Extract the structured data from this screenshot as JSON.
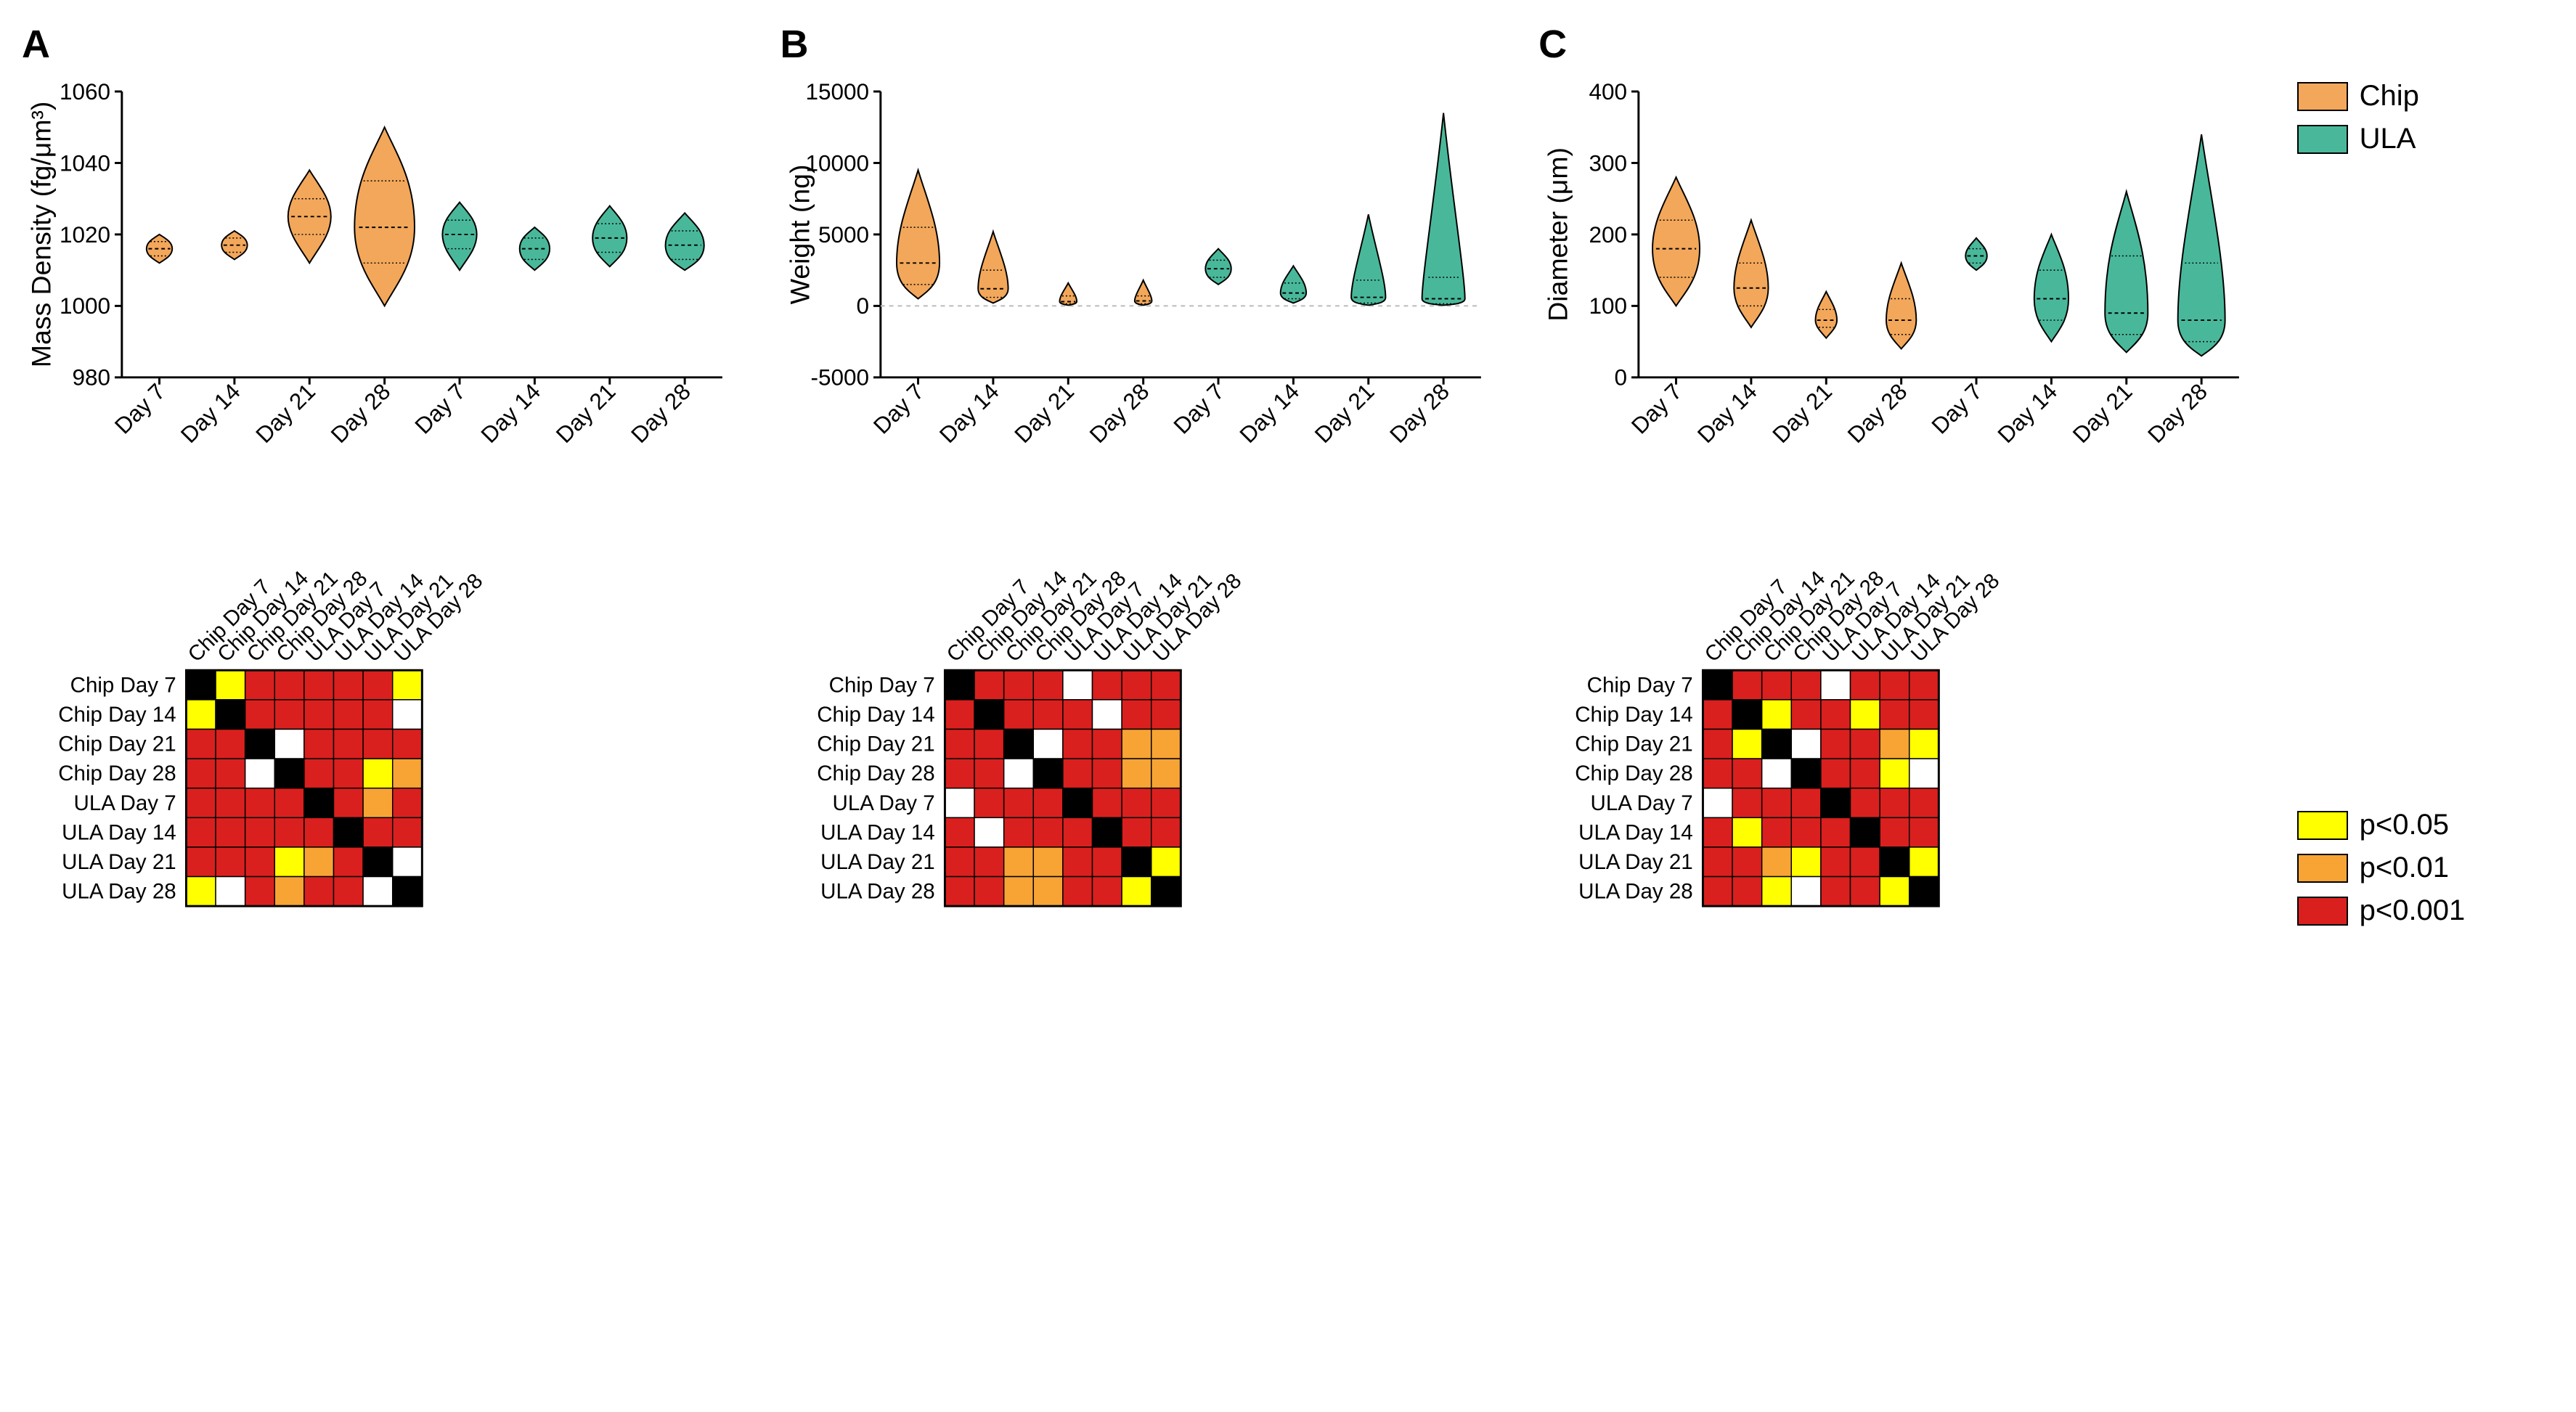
{
  "legend_groups": {
    "items": [
      {
        "color": "#f2a75a",
        "label": "Chip"
      },
      {
        "color": "#49b89a",
        "label": "ULA"
      }
    ]
  },
  "legend_pvals": {
    "items": [
      {
        "color": "#ffff00",
        "label": "p<0.05"
      },
      {
        "color": "#f7a435",
        "label": "p<0.01"
      },
      {
        "color": "#d9201e",
        "label": "p<0.001"
      }
    ]
  },
  "panels": {
    "A": {
      "label": "A",
      "ylabel": "Mass Density (fg/μm³)",
      "ymin": 980,
      "ymax": 1060,
      "yticks": [
        980,
        1000,
        1020,
        1040,
        1060
      ],
      "violins": [
        {
          "x": "Day 7",
          "group": "Chip",
          "color": "#f2a75a",
          "median": 1016,
          "q1": 1014,
          "q3": 1018,
          "min": 1012,
          "max": 1020,
          "width": 6
        },
        {
          "x": "Day 14",
          "group": "Chip",
          "color": "#f2a75a",
          "median": 1017,
          "q1": 1015,
          "q3": 1019,
          "min": 1013,
          "max": 1021,
          "width": 6
        },
        {
          "x": "Day 21",
          "group": "Chip",
          "color": "#f2a75a",
          "median": 1025,
          "q1": 1020,
          "q3": 1030,
          "min": 1012,
          "max": 1038,
          "width": 10
        },
        {
          "x": "Day 28",
          "group": "Chip",
          "color": "#f2a75a",
          "median": 1022,
          "q1": 1012,
          "q3": 1035,
          "min": 1000,
          "max": 1050,
          "width": 14
        },
        {
          "x": "Day 7",
          "group": "ULA",
          "color": "#49b89a",
          "median": 1020,
          "q1": 1016,
          "q3": 1024,
          "min": 1010,
          "max": 1029,
          "width": 8
        },
        {
          "x": "Day 14",
          "group": "ULA",
          "color": "#49b89a",
          "median": 1016,
          "q1": 1013,
          "q3": 1019,
          "min": 1010,
          "max": 1022,
          "width": 7
        },
        {
          "x": "Day 21",
          "group": "ULA",
          "color": "#49b89a",
          "median": 1019,
          "q1": 1015,
          "q3": 1023,
          "min": 1011,
          "max": 1028,
          "width": 8
        },
        {
          "x": "Day 28",
          "group": "ULA",
          "color": "#49b89a",
          "median": 1017,
          "q1": 1013,
          "q3": 1021,
          "min": 1010,
          "max": 1026,
          "width": 9
        }
      ],
      "heatmap": [
        [
          "k",
          "y",
          "r",
          "r",
          "r",
          "r",
          "r",
          "y"
        ],
        [
          "y",
          "k",
          "r",
          "r",
          "r",
          "r",
          "r",
          "w"
        ],
        [
          "r",
          "r",
          "k",
          "w",
          "r",
          "r",
          "r",
          "r"
        ],
        [
          "r",
          "r",
          "w",
          "k",
          "r",
          "r",
          "y",
          "o"
        ],
        [
          "r",
          "r",
          "r",
          "r",
          "k",
          "r",
          "o",
          "r"
        ],
        [
          "r",
          "r",
          "r",
          "r",
          "r",
          "k",
          "r",
          "r"
        ],
        [
          "r",
          "r",
          "r",
          "y",
          "o",
          "r",
          "k",
          "w"
        ],
        [
          "y",
          "w",
          "r",
          "o",
          "r",
          "r",
          "w",
          "k"
        ]
      ]
    },
    "B": {
      "label": "B",
      "ylabel": "Weight (ng)",
      "ymin": -5000,
      "ymax": 15000,
      "yticks": [
        -5000,
        0,
        5000,
        10000,
        15000
      ],
      "ref_line": 0,
      "violins": [
        {
          "x": "Day 7",
          "group": "Chip",
          "color": "#f2a75a",
          "median": 3000,
          "q1": 1500,
          "q3": 5500,
          "min": 500,
          "max": 9500,
          "width": 10
        },
        {
          "x": "Day 14",
          "group": "Chip",
          "color": "#f2a75a",
          "median": 1200,
          "q1": 600,
          "q3": 2500,
          "min": 200,
          "max": 5200,
          "width": 7
        },
        {
          "x": "Day 21",
          "group": "Chip",
          "color": "#f2a75a",
          "median": 300,
          "q1": 150,
          "q3": 700,
          "min": 50,
          "max": 1600,
          "width": 4
        },
        {
          "x": "Day 28",
          "group": "Chip",
          "color": "#f2a75a",
          "median": 350,
          "q1": 150,
          "q3": 700,
          "min": 50,
          "max": 1800,
          "width": 4
        },
        {
          "x": "Day 7",
          "group": "ULA",
          "color": "#49b89a",
          "median": 2600,
          "q1": 2000,
          "q3": 3200,
          "min": 1500,
          "max": 4000,
          "width": 6
        },
        {
          "x": "Day 14",
          "group": "ULA",
          "color": "#49b89a",
          "median": 900,
          "q1": 500,
          "q3": 1600,
          "min": 200,
          "max": 2800,
          "width": 6
        },
        {
          "x": "Day 21",
          "group": "ULA",
          "color": "#49b89a",
          "median": 600,
          "q1": 200,
          "q3": 1800,
          "min": 50,
          "max": 6400,
          "width": 8
        },
        {
          "x": "Day 28",
          "group": "ULA",
          "color": "#49b89a",
          "median": 500,
          "q1": 150,
          "q3": 2000,
          "min": 50,
          "max": 13500,
          "width": 10
        }
      ],
      "heatmap": [
        [
          "k",
          "r",
          "r",
          "r",
          "w",
          "r",
          "r",
          "r"
        ],
        [
          "r",
          "k",
          "r",
          "r",
          "r",
          "w",
          "r",
          "r"
        ],
        [
          "r",
          "r",
          "k",
          "w",
          "r",
          "r",
          "o",
          "o"
        ],
        [
          "r",
          "r",
          "w",
          "k",
          "r",
          "r",
          "o",
          "o"
        ],
        [
          "w",
          "r",
          "r",
          "r",
          "k",
          "r",
          "r",
          "r"
        ],
        [
          "r",
          "w",
          "r",
          "r",
          "r",
          "k",
          "r",
          "r"
        ],
        [
          "r",
          "r",
          "o",
          "o",
          "r",
          "r",
          "k",
          "y"
        ],
        [
          "r",
          "r",
          "o",
          "o",
          "r",
          "r",
          "y",
          "k"
        ]
      ]
    },
    "C": {
      "label": "C",
      "ylabel": "Diameter (μm)",
      "ymin": 0,
      "ymax": 400,
      "yticks": [
        0,
        100,
        200,
        300,
        400
      ],
      "violins": [
        {
          "x": "Day 7",
          "group": "Chip",
          "color": "#f2a75a",
          "median": 180,
          "q1": 140,
          "q3": 220,
          "min": 100,
          "max": 280,
          "width": 11
        },
        {
          "x": "Day 14",
          "group": "Chip",
          "color": "#f2a75a",
          "median": 125,
          "q1": 100,
          "q3": 160,
          "min": 70,
          "max": 220,
          "width": 8
        },
        {
          "x": "Day 21",
          "group": "Chip",
          "color": "#f2a75a",
          "median": 80,
          "q1": 70,
          "q3": 95,
          "min": 55,
          "max": 120,
          "width": 5
        },
        {
          "x": "Day 28",
          "group": "Chip",
          "color": "#f2a75a",
          "median": 80,
          "q1": 60,
          "q3": 110,
          "min": 40,
          "max": 160,
          "width": 7
        },
        {
          "x": "Day 7",
          "group": "ULA",
          "color": "#49b89a",
          "median": 170,
          "q1": 160,
          "q3": 180,
          "min": 150,
          "max": 195,
          "width": 5
        },
        {
          "x": "Day 14",
          "group": "ULA",
          "color": "#49b89a",
          "median": 110,
          "q1": 80,
          "q3": 150,
          "min": 50,
          "max": 200,
          "width": 8
        },
        {
          "x": "Day 21",
          "group": "ULA",
          "color": "#49b89a",
          "median": 90,
          "q1": 60,
          "q3": 170,
          "min": 35,
          "max": 260,
          "width": 10
        },
        {
          "x": "Day 28",
          "group": "ULA",
          "color": "#49b89a",
          "median": 80,
          "q1": 50,
          "q3": 160,
          "min": 30,
          "max": 340,
          "width": 11
        }
      ],
      "heatmap": [
        [
          "k",
          "r",
          "r",
          "r",
          "w",
          "r",
          "r",
          "r"
        ],
        [
          "r",
          "k",
          "y",
          "r",
          "r",
          "y",
          "r",
          "r"
        ],
        [
          "r",
          "y",
          "k",
          "w",
          "r",
          "r",
          "o",
          "y"
        ],
        [
          "r",
          "r",
          "w",
          "k",
          "r",
          "r",
          "y",
          "w"
        ],
        [
          "w",
          "r",
          "r",
          "r",
          "k",
          "r",
          "r",
          "r"
        ],
        [
          "r",
          "y",
          "r",
          "r",
          "r",
          "k",
          "r",
          "r"
        ],
        [
          "r",
          "r",
          "o",
          "y",
          "r",
          "r",
          "k",
          "y"
        ],
        [
          "r",
          "r",
          "y",
          "w",
          "r",
          "r",
          "y",
          "k"
        ]
      ]
    }
  },
  "heatmap_labels": [
    "Chip Day 7",
    "Chip Day 14",
    "Chip Day 21",
    "Chip Day 28",
    "ULA Day 7",
    "ULA Day 14",
    "ULA Day 21",
    "ULA Day 28"
  ],
  "xlabels": [
    "Day 7",
    "Day 14",
    "Day 21",
    "Day 28",
    "Day 7",
    "Day 14",
    "Day 21",
    "Day 28"
  ],
  "heatmap_colors": {
    "k": "#000000",
    "w": "#ffffff",
    "y": "#ffff00",
    "o": "#f7a435",
    "r": "#d9201e"
  },
  "axis_color": "#000000",
  "tick_fontsize": 32,
  "ylabel_fontsize": 38,
  "panel_label_fontsize": 54
}
